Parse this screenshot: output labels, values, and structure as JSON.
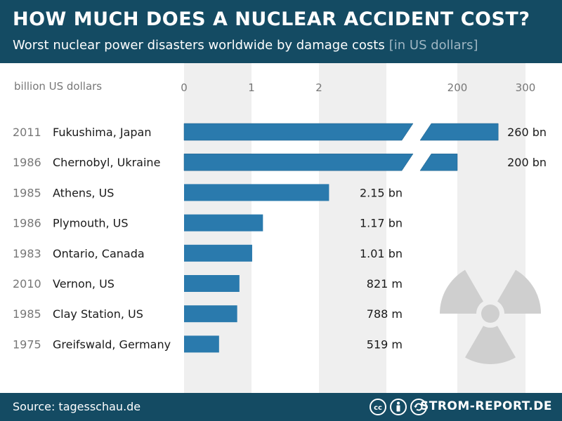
{
  "header": {
    "title": "HOW MUCH DOES A NUCLEAR ACCIDENT COST?",
    "subtitle": "Worst nuclear power disasters worldwide by damage costs",
    "subtitle_unit": "[in US dollars]"
  },
  "footer": {
    "source": "Source: tagesschau.de",
    "brand": "STROM-REPORT.DE",
    "license_icons": [
      "cc-icon",
      "by-icon",
      "sa-icon"
    ]
  },
  "colors": {
    "header_bg": "#144b63",
    "bar": "#2a7aad",
    "band": "#efefef",
    "text_dark": "#1a1a1a",
    "text_muted": "#777777",
    "radiation_icon": "#cfcfcf"
  },
  "decoration": {
    "icon": "radiation-icon"
  },
  "chart_data": {
    "type": "bar",
    "orientation": "horizontal",
    "axis_unit_label": "billion US dollars",
    "axis_ticks": [
      "0",
      "1",
      "2",
      "200",
      "300"
    ],
    "axis_segments": [
      {
        "range": [
          0,
          3
        ],
        "ticks": [
          0,
          1,
          2
        ]
      },
      {
        "range": [
          200,
          300
        ],
        "ticks": [
          200,
          300
        ]
      }
    ],
    "axis_break": true,
    "grid": "alternating bands",
    "categories": [
      "Fukushima, Japan",
      "Chernobyl, Ukraine",
      "Athens, US",
      "Plymouth, US",
      "Ontario, Canada",
      "Vernon, US",
      "Clay Station, US",
      "Greifswald, Germany"
    ],
    "years": [
      "2011",
      "1986",
      "1985",
      "1986",
      "1983",
      "2010",
      "1985",
      "1975"
    ],
    "values": [
      260,
      200,
      2.15,
      1.17,
      1.01,
      0.821,
      0.788,
      0.519
    ],
    "value_labels": [
      "260 bn",
      "200 bn",
      "2.15 bn",
      "1.17 bn",
      "1.01 bn",
      "821 m",
      "788 m",
      "519 m"
    ]
  }
}
